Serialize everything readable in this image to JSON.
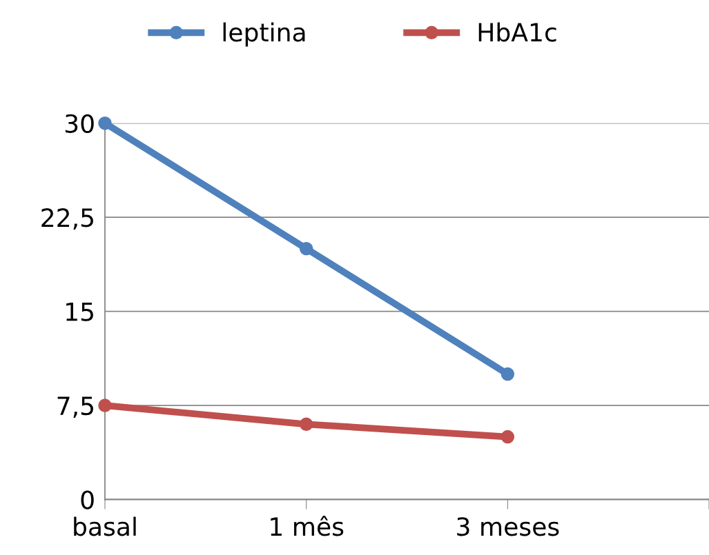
{
  "chart_data": {
    "type": "line",
    "categories": [
      "basal",
      "1 mês",
      "3 meses",
      null
    ],
    "series": [
      {
        "name": "leptina",
        "color": "#4f81bd",
        "values": [
          30,
          20,
          10,
          null
        ]
      },
      {
        "name": "HbA1c",
        "color": "#c0504d",
        "values": [
          7.5,
          6,
          5,
          null
        ]
      }
    ],
    "ylim": [
      0,
      30
    ],
    "yticks": [
      0,
      {
        "value": 7.5,
        "label": "7,5"
      },
      15,
      {
        "value": 22.5,
        "label": "22,5"
      },
      30
    ],
    "grid": "y",
    "legend": "top",
    "marker": "circle",
    "line_style": "solid"
  }
}
